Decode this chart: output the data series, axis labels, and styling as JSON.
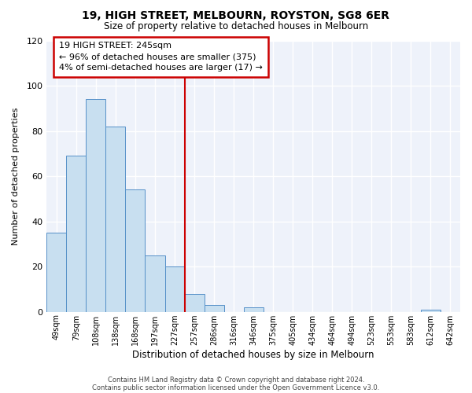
{
  "title": "19, HIGH STREET, MELBOURN, ROYSTON, SG8 6ER",
  "subtitle": "Size of property relative to detached houses in Melbourn",
  "xlabel": "Distribution of detached houses by size in Melbourn",
  "ylabel": "Number of detached properties",
  "footer_lines": [
    "Contains HM Land Registry data © Crown copyright and database right 2024.",
    "Contains public sector information licensed under the Open Government Licence v3.0."
  ],
  "bar_labels": [
    "49sqm",
    "79sqm",
    "108sqm",
    "138sqm",
    "168sqm",
    "197sqm",
    "227sqm",
    "257sqm",
    "286sqm",
    "316sqm",
    "346sqm",
    "375sqm",
    "405sqm",
    "434sqm",
    "464sqm",
    "494sqm",
    "523sqm",
    "553sqm",
    "583sqm",
    "612sqm",
    "642sqm"
  ],
  "bar_values": [
    35,
    69,
    94,
    82,
    54,
    25,
    20,
    8,
    3,
    0,
    2,
    0,
    0,
    0,
    0,
    0,
    0,
    0,
    0,
    1,
    0
  ],
  "bar_color": "#c8dff0",
  "bar_edge_color": "#5590c8",
  "vline_x": 7,
  "vline_color": "#cc0000",
  "annotation_title": "19 HIGH STREET: 245sqm",
  "annotation_line1": "← 96% of detached houses are smaller (375)",
  "annotation_line2": "4% of semi-detached houses are larger (17) →",
  "annotation_box_color": "#ffffff",
  "annotation_box_edge": "#cc0000",
  "ylim": [
    0,
    120
  ],
  "yticks": [
    0,
    20,
    40,
    60,
    80,
    100,
    120
  ],
  "background_color": "#ffffff",
  "plot_bg_color": "#eef2fa"
}
